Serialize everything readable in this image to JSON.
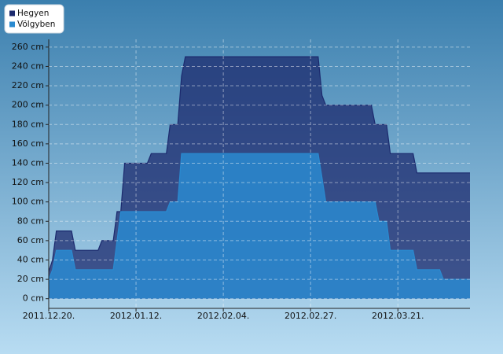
{
  "chart_data": {
    "type": "area",
    "x": [
      "2011-12-20",
      "2011-12-21",
      "2011-12-22",
      "2011-12-26",
      "2011-12-27",
      "2012-01-02",
      "2012-01-03",
      "2012-01-06",
      "2012-01-07",
      "2012-01-08",
      "2012-01-09",
      "2012-01-15",
      "2012-01-16",
      "2012-01-20",
      "2012-01-21",
      "2012-01-23",
      "2012-01-24",
      "2012-01-25",
      "2012-02-29",
      "2012-03-01",
      "2012-03-02",
      "2012-03-14",
      "2012-03-15",
      "2012-03-16",
      "2012-03-18",
      "2012-03-19",
      "2012-03-25",
      "2012-03-26",
      "2012-04-01",
      "2012-04-02",
      "2012-04-09"
    ],
    "series": [
      {
        "name": "Hegyen",
        "color": "#1c2a6e",
        "values": [
          28,
          40,
          70,
          70,
          50,
          50,
          60,
          60,
          90,
          90,
          140,
          140,
          150,
          150,
          180,
          180,
          230,
          250,
          250,
          210,
          200,
          200,
          180,
          180,
          180,
          150,
          150,
          130,
          130,
          130,
          130
        ]
      },
      {
        "name": "Völgyben",
        "color": "#2a8ad0",
        "values": [
          20,
          30,
          50,
          50,
          30,
          30,
          30,
          30,
          60,
          90,
          90,
          90,
          90,
          90,
          100,
          100,
          150,
          150,
          150,
          125,
          100,
          100,
          100,
          80,
          80,
          50,
          50,
          30,
          30,
          20,
          20
        ]
      }
    ],
    "xlim": [
      "2011-12-20",
      "2012-04-09"
    ],
    "xticks": [
      {
        "value": "2011-12-20",
        "label": "2011.12.20."
      },
      {
        "value": "2012-01-12",
        "label": "2012.01.12."
      },
      {
        "value": "2012-02-04",
        "label": "2012.02.04."
      },
      {
        "value": "2012-02-27",
        "label": "2012.02.27."
      },
      {
        "value": "2012-03-21",
        "label": "2012.03.21."
      }
    ],
    "ylim": [
      -10,
      268
    ],
    "yticks": [
      {
        "value": 0,
        "label": "0 cm"
      },
      {
        "value": 20,
        "label": "20 cm"
      },
      {
        "value": 40,
        "label": "40 cm"
      },
      {
        "value": 60,
        "label": "60 cm"
      },
      {
        "value": 80,
        "label": "80 cm"
      },
      {
        "value": 100,
        "label": "100 cm"
      },
      {
        "value": 120,
        "label": "120 cm"
      },
      {
        "value": 140,
        "label": "140 cm"
      },
      {
        "value": 160,
        "label": "160 cm"
      },
      {
        "value": 180,
        "label": "180 cm"
      },
      {
        "value": 200,
        "label": "200 cm"
      },
      {
        "value": 220,
        "label": "220 cm"
      },
      {
        "value": 240,
        "label": "240 cm"
      },
      {
        "value": 260,
        "label": "260 cm"
      }
    ],
    "grid": true,
    "legend": "top-left"
  }
}
